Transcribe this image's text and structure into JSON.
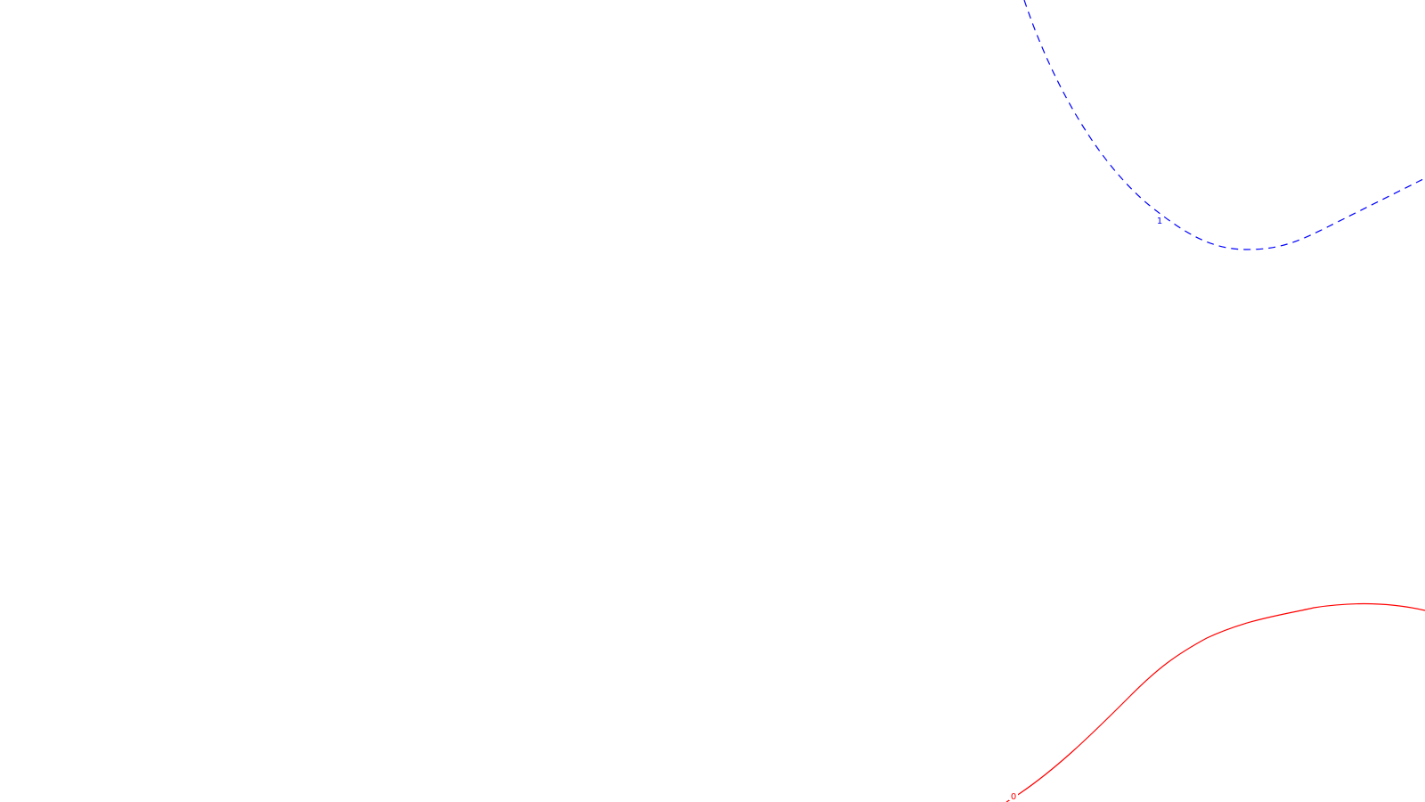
{
  "contours": [
    {
      "id": "contour-1",
      "label": "1",
      "color": "#0000ff",
      "line_style": "dashed"
    },
    {
      "id": "contour-0",
      "label": "0",
      "color": "#ff0000",
      "line_style": "solid"
    }
  ]
}
